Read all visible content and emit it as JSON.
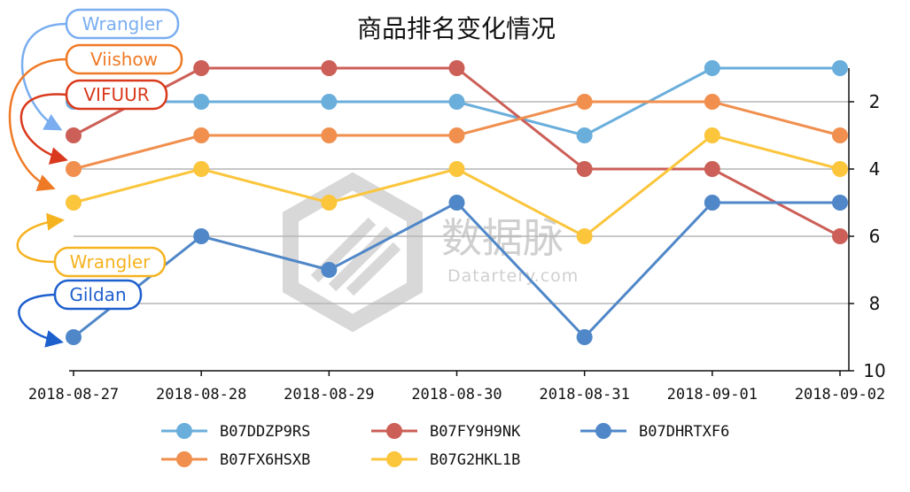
{
  "chart_data": {
    "type": "line",
    "title": "商品排名变化情况",
    "x": [
      "2018-08-27",
      "2018-08-28",
      "2018-08-29",
      "2018-08-30",
      "2018-08-31",
      "2018-09-01",
      "2018-09-02"
    ],
    "ylim": [
      1,
      10
    ],
    "y_inverted": true,
    "y_axis_position": "right",
    "yticks": [
      2,
      4,
      6,
      8,
      10
    ],
    "grid": true,
    "legend_position": "bottom",
    "series": [
      {
        "name": "B07DDZP9RS",
        "color": "#6aaedc",
        "values": [
          2,
          2,
          2,
          2,
          3,
          1,
          1
        ]
      },
      {
        "name": "B07FY9H9NK",
        "color": "#cc5f57",
        "values": [
          3,
          1,
          1,
          1,
          4,
          4,
          6
        ]
      },
      {
        "name": "B07DHRTXF6",
        "color": "#4f87c8",
        "values": [
          9,
          6,
          7,
          5,
          9,
          5,
          5
        ]
      },
      {
        "name": "B07FX6HSXB",
        "color": "#f08f4e",
        "values": [
          4,
          3,
          3,
          3,
          2,
          2,
          3
        ]
      },
      {
        "name": "B07G2HKL1B",
        "color": "#fbc53c",
        "values": [
          5,
          4,
          5,
          4,
          6,
          3,
          4
        ]
      }
    ],
    "legend_order": [
      "B07DDZP9RS",
      "B07FY9H9NK",
      "B07DHRTXF6",
      "B07FX6HSXB",
      "B07G2HKL1B"
    ],
    "annotations": [
      {
        "text": "Wrangler",
        "series": "B07DDZP9RS",
        "color": "#7aaef0",
        "target_y": 2
      },
      {
        "text": "Viishow",
        "series": "B07FX6HSXB",
        "color": "#ef7a26",
        "target_y": 4
      },
      {
        "text": "VIFUUR",
        "series": "B07FY9H9NK",
        "color": "#d9391c",
        "target_y": 3
      },
      {
        "text": "Wrangler",
        "series": "B07G2HKL1B",
        "color": "#f6b320",
        "target_y": 5
      },
      {
        "text": "Gildan",
        "series": "B07DHRTXF6",
        "color": "#1e5fce",
        "target_y": 9
      }
    ]
  },
  "watermark": {
    "brand": "数据脉",
    "site": "Datartery.com"
  }
}
